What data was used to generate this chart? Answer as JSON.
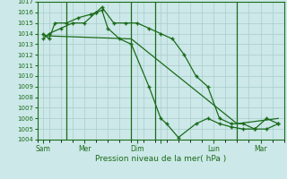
{
  "title": "Pression niveau de la mer( hPa )",
  "bg_color": "#cce8e8",
  "grid_color": "#aacccc",
  "line_color": "#1a6b1a",
  "ylim": [
    1004,
    1017
  ],
  "yticks": [
    1004,
    1005,
    1006,
    1007,
    1008,
    1009,
    1010,
    1011,
    1012,
    1013,
    1014,
    1015,
    1016,
    1017
  ],
  "xlim": [
    0,
    21
  ],
  "xtick_positions": [
    0.5,
    4.0,
    8.5,
    10.5,
    15.0,
    19.0
  ],
  "xtick_labels": [
    "Sam",
    "Mer",
    "Dim",
    "",
    "Lun",
    "Mar"
  ],
  "vline_positions": [
    2.5,
    8.0,
    10.0,
    17.0
  ],
  "series1_x": [
    0.5,
    1.0,
    1.5,
    2.5,
    3.5,
    4.5,
    5.0,
    5.5,
    6.5,
    7.5,
    8.5,
    9.5,
    10.5,
    11.5,
    12.5,
    13.5,
    14.5,
    15.5,
    16.5,
    17.5,
    18.5,
    19.5,
    20.5
  ],
  "series1_y": [
    1014,
    1013.5,
    1015,
    1015,
    1015.5,
    1015.8,
    1016,
    1016.5,
    1015,
    1015,
    1015,
    1014.5,
    1014,
    1013.5,
    1012,
    1010,
    1009,
    1006,
    1005.5,
    1005.5,
    1005,
    1005,
    1005.5
  ],
  "series2_x": [
    0.5,
    1.0,
    2.0,
    3.0,
    4.0,
    5.0,
    5.5,
    6.0,
    7.0,
    8.0,
    9.5,
    10.5,
    11.0,
    12.0,
    13.5,
    14.5,
    15.5,
    16.5,
    17.5,
    18.5,
    19.5,
    20.5
  ],
  "series2_y": [
    1013.5,
    1014,
    1014.5,
    1015,
    1015,
    1016,
    1016.2,
    1014.5,
    1013.5,
    1013,
    1009.0,
    1006.0,
    1005.5,
    1004.2,
    1005.5,
    1006.0,
    1005.5,
    1005.2,
    1005,
    1005,
    1006,
    1005.5
  ],
  "series3_x": [
    0.5,
    8.0,
    17.0,
    20.5
  ],
  "series3_y": [
    1013.8,
    1013.5,
    1005.5,
    1006
  ]
}
